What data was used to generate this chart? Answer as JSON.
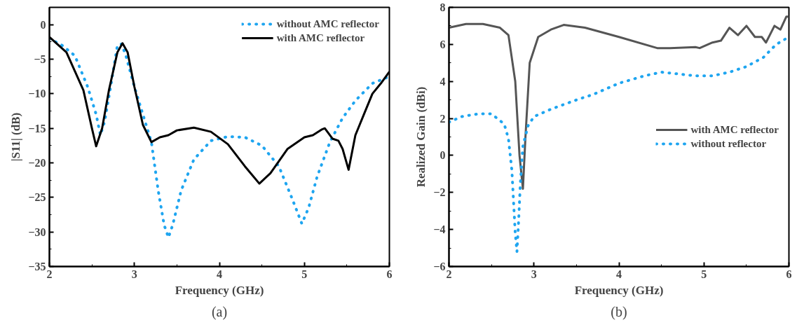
{
  "chart_data": [
    {
      "type": "line",
      "xlabel": "Frequency (GHz)",
      "ylabel": "|S11| (dB)",
      "annotations": [
        "(a)"
      ],
      "xlim": [
        2,
        6
      ],
      "ylim": [
        -35,
        2.5
      ],
      "xticks": [
        2,
        3,
        4,
        5,
        6
      ],
      "yticks": [
        -35,
        -30,
        -25,
        -20,
        -15,
        -10,
        -5,
        0
      ],
      "grid": false,
      "legend": "top right",
      "series": [
        {
          "name": "without AMC reflector",
          "color": "#1ea5f0",
          "line_style": "dotted",
          "x": [
            2,
            2.15,
            2.3,
            2.45,
            2.55,
            2.6,
            2.65,
            2.72,
            2.8,
            2.85,
            2.9,
            3.0,
            3.1,
            3.2,
            3.28,
            3.35,
            3.4,
            3.45,
            3.55,
            3.7,
            3.9,
            4.1,
            4.3,
            4.5,
            4.7,
            4.85,
            4.97,
            5.05,
            5.15,
            5.3,
            5.45,
            5.6,
            5.8,
            6.0
          ],
          "values": [
            -2,
            -3,
            -4.5,
            -9,
            -13,
            -16,
            -14,
            -9,
            -3,
            -2.8,
            -4.5,
            -9,
            -13,
            -17,
            -24,
            -29,
            -30.8,
            -29,
            -24,
            -19.5,
            -16.8,
            -16.2,
            -16.3,
            -17.5,
            -20.5,
            -25,
            -28.8,
            -26.5,
            -22,
            -17,
            -13.5,
            -11,
            -8.5,
            -7.5
          ]
        },
        {
          "name": "with AMC reflector",
          "color": "#000000",
          "line_style": "solid",
          "x": [
            2,
            2.2,
            2.4,
            2.5,
            2.55,
            2.62,
            2.7,
            2.8,
            2.86,
            2.92,
            3.0,
            3.1,
            3.2,
            3.3,
            3.4,
            3.5,
            3.7,
            3.9,
            4.1,
            4.3,
            4.47,
            4.6,
            4.8,
            5.0,
            5.1,
            5.2,
            5.24,
            5.33,
            5.4,
            5.45,
            5.52,
            5.6,
            5.7,
            5.8,
            5.9,
            6.0
          ],
          "values": [
            -1.8,
            -4,
            -9.5,
            -15,
            -17.6,
            -15,
            -9.5,
            -4,
            -2.7,
            -4,
            -9,
            -14.5,
            -17,
            -16.3,
            -16,
            -15.3,
            -14.9,
            -15.5,
            -17.3,
            -20.5,
            -23,
            -21.5,
            -18,
            -16.3,
            -16,
            -15.2,
            -15,
            -16.5,
            -16.8,
            -18,
            -21,
            -16,
            -13,
            -10,
            -8.5,
            -6.8
          ]
        }
      ]
    },
    {
      "type": "line",
      "xlabel": "Frequency (GHz)",
      "ylabel": "Realized Gain (dBi)",
      "annotations": [
        "(b)"
      ],
      "xlim": [
        2,
        6
      ],
      "ylim": [
        -6,
        8
      ],
      "xticks": [
        2,
        3,
        4,
        5,
        6
      ],
      "yticks": [
        -6,
        -4,
        -2,
        0,
        2,
        4,
        6,
        8
      ],
      "grid": false,
      "legend": "right",
      "series": [
        {
          "name": "with AMC reflector",
          "color": "#555555",
          "line_style": "solid",
          "x": [
            2,
            2.2,
            2.4,
            2.6,
            2.7,
            2.78,
            2.83,
            2.87,
            2.9,
            2.95,
            3.05,
            3.2,
            3.35,
            3.6,
            4.0,
            4.45,
            4.6,
            4.9,
            4.95,
            5.1,
            5.2,
            5.3,
            5.4,
            5.5,
            5.6,
            5.68,
            5.73,
            5.83,
            5.9,
            5.97,
            6.0
          ],
          "values": [
            6.9,
            7.1,
            7.1,
            6.9,
            6.5,
            4,
            0,
            -1.8,
            1,
            5,
            6.4,
            6.8,
            7.05,
            6.9,
            6.4,
            5.8,
            5.8,
            5.85,
            5.8,
            6.1,
            6.2,
            6.9,
            6.5,
            7.0,
            6.4,
            6.4,
            6.1,
            7.0,
            6.8,
            7.5,
            7.5
          ]
        },
        {
          "name": "without reflector",
          "color": "#1ea5f0",
          "line_style": "dotted",
          "x": [
            2,
            2.15,
            2.35,
            2.5,
            2.65,
            2.7,
            2.74,
            2.76,
            2.78,
            2.8,
            2.82,
            2.84,
            2.87,
            2.93,
            3.0,
            3.2,
            3.5,
            3.7,
            4.0,
            4.3,
            4.5,
            4.9,
            5.1,
            5.3,
            5.5,
            5.7,
            5.85,
            6.0
          ],
          "values": [
            1.8,
            2.1,
            2.25,
            2.25,
            1.7,
            0.9,
            -0.8,
            -2.5,
            -4.2,
            -5.2,
            -3.5,
            -1.5,
            0.5,
            1.6,
            2.1,
            2.5,
            3.0,
            3.3,
            3.9,
            4.3,
            4.5,
            4.3,
            4.3,
            4.5,
            4.8,
            5.3,
            6.0,
            6.4
          ]
        }
      ]
    }
  ]
}
